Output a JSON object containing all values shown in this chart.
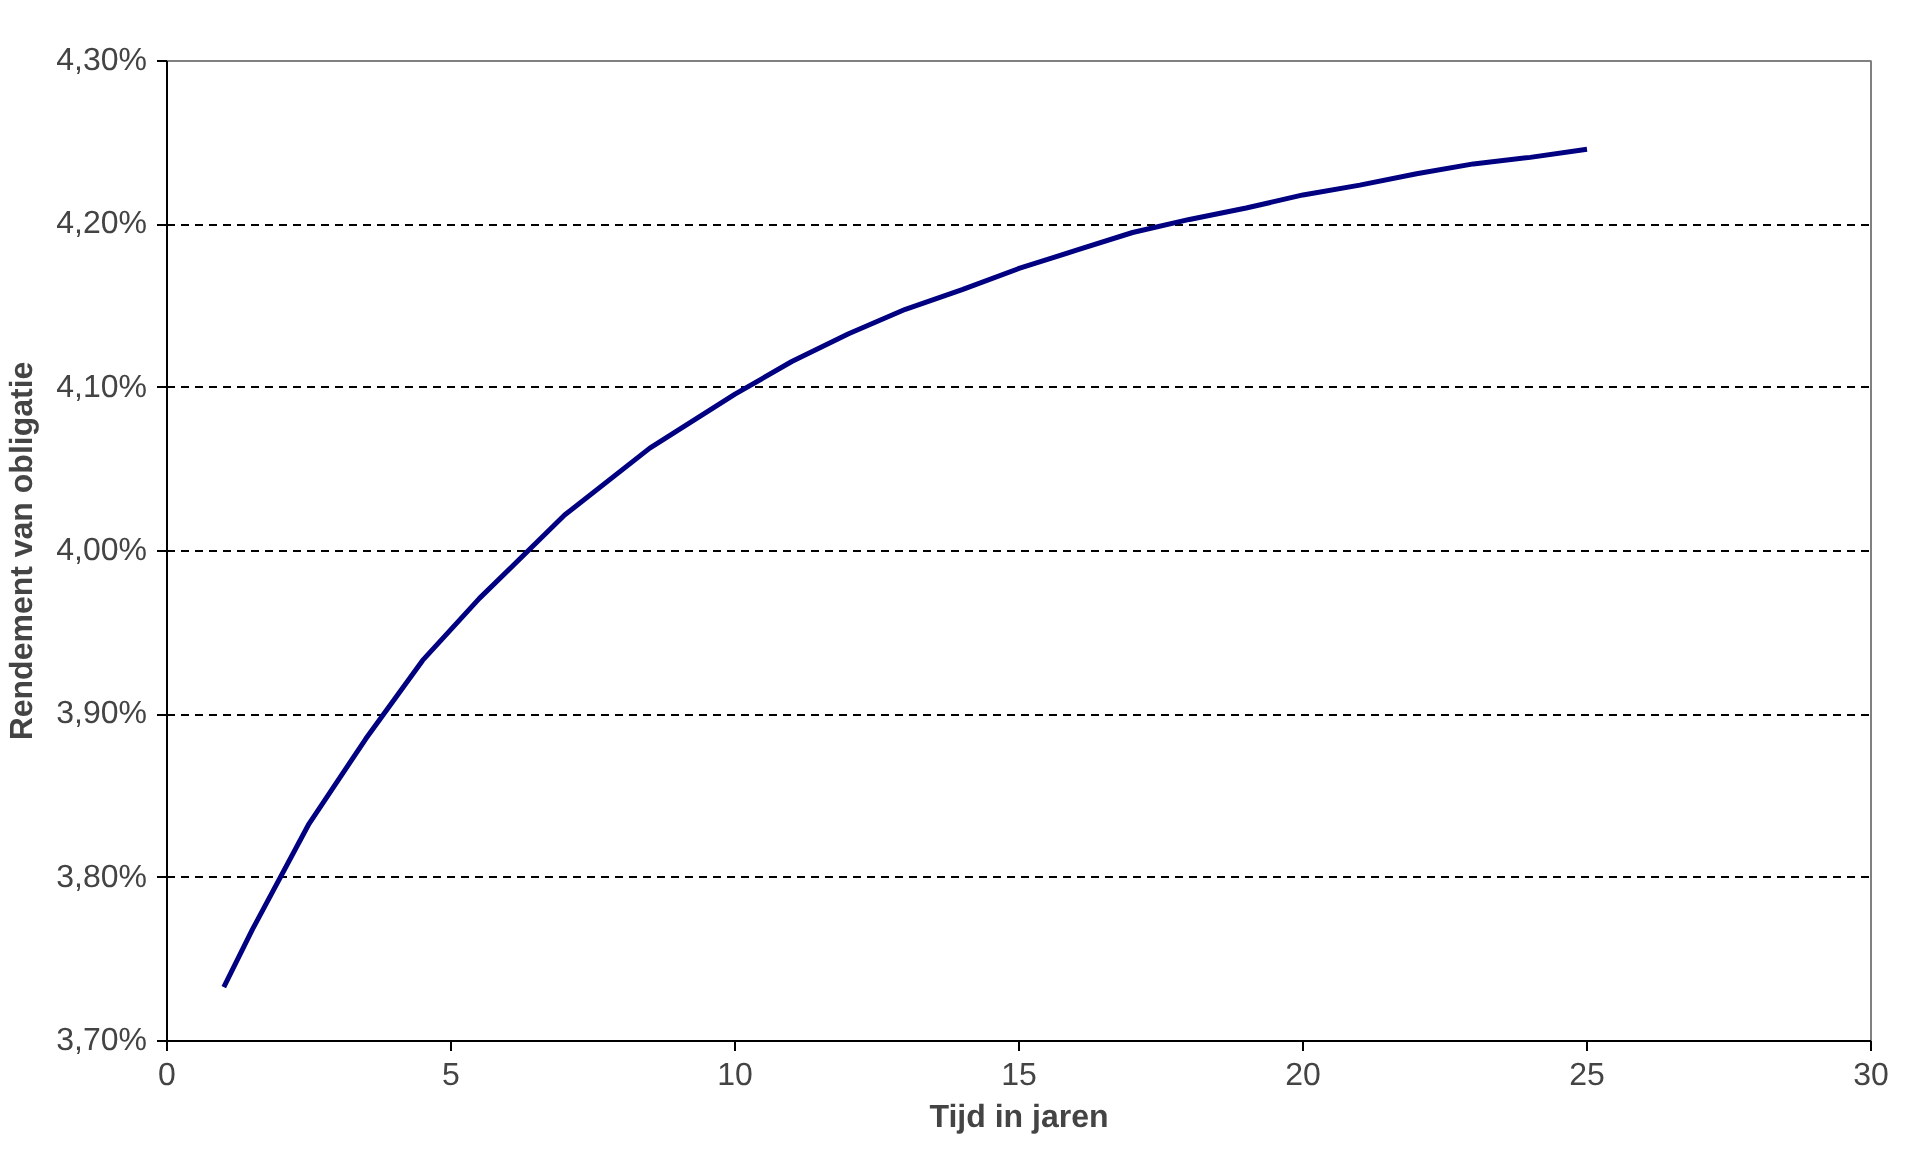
{
  "chart_data": {
    "type": "line",
    "xlabel": "Tijd in jaren",
    "ylabel": "Rendement van obligatie",
    "x": [
      1,
      1.5,
      2.5,
      3.5,
      4.5,
      5.5,
      7,
      8.5,
      10,
      11,
      12,
      13,
      14,
      15,
      16,
      17,
      18,
      19,
      20,
      21,
      22,
      23,
      24,
      25
    ],
    "series": [
      {
        "color": "#000080",
        "values": [
          3.733,
          3.768,
          3.833,
          3.885,
          3.933,
          3.971,
          4.022,
          4.063,
          4.096,
          4.116,
          4.133,
          4.148,
          4.16,
          4.173,
          4.184,
          4.195,
          4.203,
          4.21,
          4.218,
          4.224,
          4.231,
          4.237,
          4.241,
          4.246
        ]
      }
    ],
    "xlim": [
      0,
      30
    ],
    "xticks": [
      0,
      5,
      10,
      15,
      20,
      25,
      30
    ],
    "ylim": [
      3.7,
      4.3
    ],
    "yticks": [
      {
        "value": 3.7,
        "label": "3,70%"
      },
      {
        "value": 3.8,
        "label": "3,80%"
      },
      {
        "value": 3.9,
        "label": "3,90%"
      },
      {
        "value": 4.0,
        "label": "4,00%"
      },
      {
        "value": 4.1,
        "label": "4,10%"
      },
      {
        "value": 4.2,
        "label": "4,20%"
      },
      {
        "value": 4.3,
        "label": "4,30%"
      }
    ],
    "grid": "y",
    "marker": "none",
    "line_style": "solid"
  }
}
